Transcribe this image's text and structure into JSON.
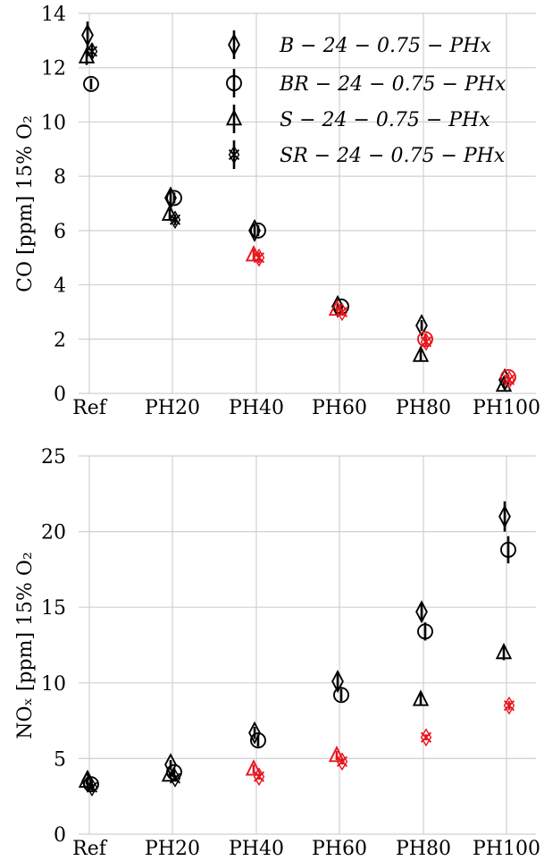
{
  "chart_data": [
    {
      "type": "scatter",
      "ylabel": "CO [ppm] 15% O₂",
      "categories": [
        "Ref",
        "PH20",
        "PH40",
        "PH60",
        "PH80",
        "PH100"
      ],
      "yticks": [
        "0",
        "2",
        "4",
        "6",
        "8",
        "10",
        "12",
        "14"
      ],
      "ylim": [
        0,
        14
      ],
      "grid": true,
      "legend": {
        "placement": "top-right",
        "entries": [
          "B − 24 − 0.75 − PHx",
          "BR − 24 − 0.75 − PHx",
          "S − 24 − 0.75 − PHx",
          "SR − 24 − 0.75 − PHx"
        ]
      },
      "series": [
        {
          "marker": "diamond",
          "values": [
            13.2,
            7.2,
            6.0,
            3.2,
            2.5,
            0.5
          ],
          "errors": [
            0.5,
            0.3,
            0.2,
            0.1,
            0.2,
            0.1
          ],
          "colors": [
            "#000000",
            "#000000",
            "#000000",
            "#000000",
            "#000000",
            "#000000"
          ]
        },
        {
          "marker": "circle",
          "values": [
            11.4,
            7.2,
            6.0,
            3.2,
            2.0,
            0.6
          ],
          "errors": [
            0.2,
            0.2,
            0.2,
            0.1,
            0.2,
            0.1
          ],
          "colors": [
            "#000000",
            "#000000",
            "#000000",
            "#000000",
            "#e8141c",
            "#e8141c"
          ]
        },
        {
          "marker": "triangle",
          "values": [
            12.4,
            6.6,
            5.1,
            3.1,
            1.4,
            0.3
          ],
          "errors": [
            0.3,
            0.2,
            0.2,
            0.1,
            0.2,
            0.1
          ],
          "colors": [
            "#000000",
            "#000000",
            "#e8141c",
            "#e8141c",
            "#000000",
            "#000000"
          ]
        },
        {
          "marker": "cross",
          "values": [
            12.6,
            6.4,
            5.0,
            3.0,
            1.9,
            0.5
          ],
          "errors": [
            0.3,
            0.2,
            0.2,
            0.1,
            0.2,
            0.1
          ],
          "colors": [
            "#000000",
            "#000000",
            "#e8141c",
            "#e8141c",
            "#e8141c",
            "#e8141c"
          ]
        }
      ]
    },
    {
      "type": "scatter",
      "ylabel": "NOₓ [ppm] 15% O₂",
      "categories": [
        "Ref",
        "PH20",
        "PH40",
        "PH60",
        "PH80",
        "PH100"
      ],
      "yticks": [
        "0",
        "5",
        "10",
        "15",
        "20",
        "25"
      ],
      "ylim": [
        0,
        25
      ],
      "grid": true,
      "series": [
        {
          "marker": "diamond",
          "values": [
            3.5,
            4.6,
            6.7,
            10.1,
            14.7,
            21.0
          ],
          "errors": [
            0.3,
            0.3,
            0.4,
            0.5,
            0.6,
            1.0
          ],
          "colors": [
            "#000000",
            "#000000",
            "#000000",
            "#000000",
            "#000000",
            "#000000"
          ]
        },
        {
          "marker": "circle",
          "values": [
            3.3,
            4.1,
            6.2,
            9.2,
            13.4,
            18.8
          ],
          "errors": [
            0.2,
            0.3,
            0.4,
            0.4,
            0.6,
            0.9
          ],
          "colors": [
            "#000000",
            "#000000",
            "#000000",
            "#000000",
            "#000000",
            "#000000"
          ]
        },
        {
          "marker": "triangle",
          "values": [
            3.5,
            3.9,
            4.3,
            5.2,
            8.9,
            12.0
          ],
          "errors": [
            0.2,
            0.2,
            0.3,
            0.3,
            0.4,
            0.5
          ],
          "colors": [
            "#000000",
            "#000000",
            "#e8141c",
            "#e8141c",
            "#000000",
            "#000000"
          ]
        },
        {
          "marker": "cross",
          "values": [
            3.1,
            3.7,
            3.8,
            4.8,
            6.4,
            8.5
          ],
          "errors": [
            0.2,
            0.2,
            0.2,
            0.2,
            0.2,
            0.3
          ],
          "colors": [
            "#000000",
            "#000000",
            "#e8141c",
            "#e8141c",
            "#e8141c",
            "#e8141c"
          ]
        }
      ]
    }
  ]
}
